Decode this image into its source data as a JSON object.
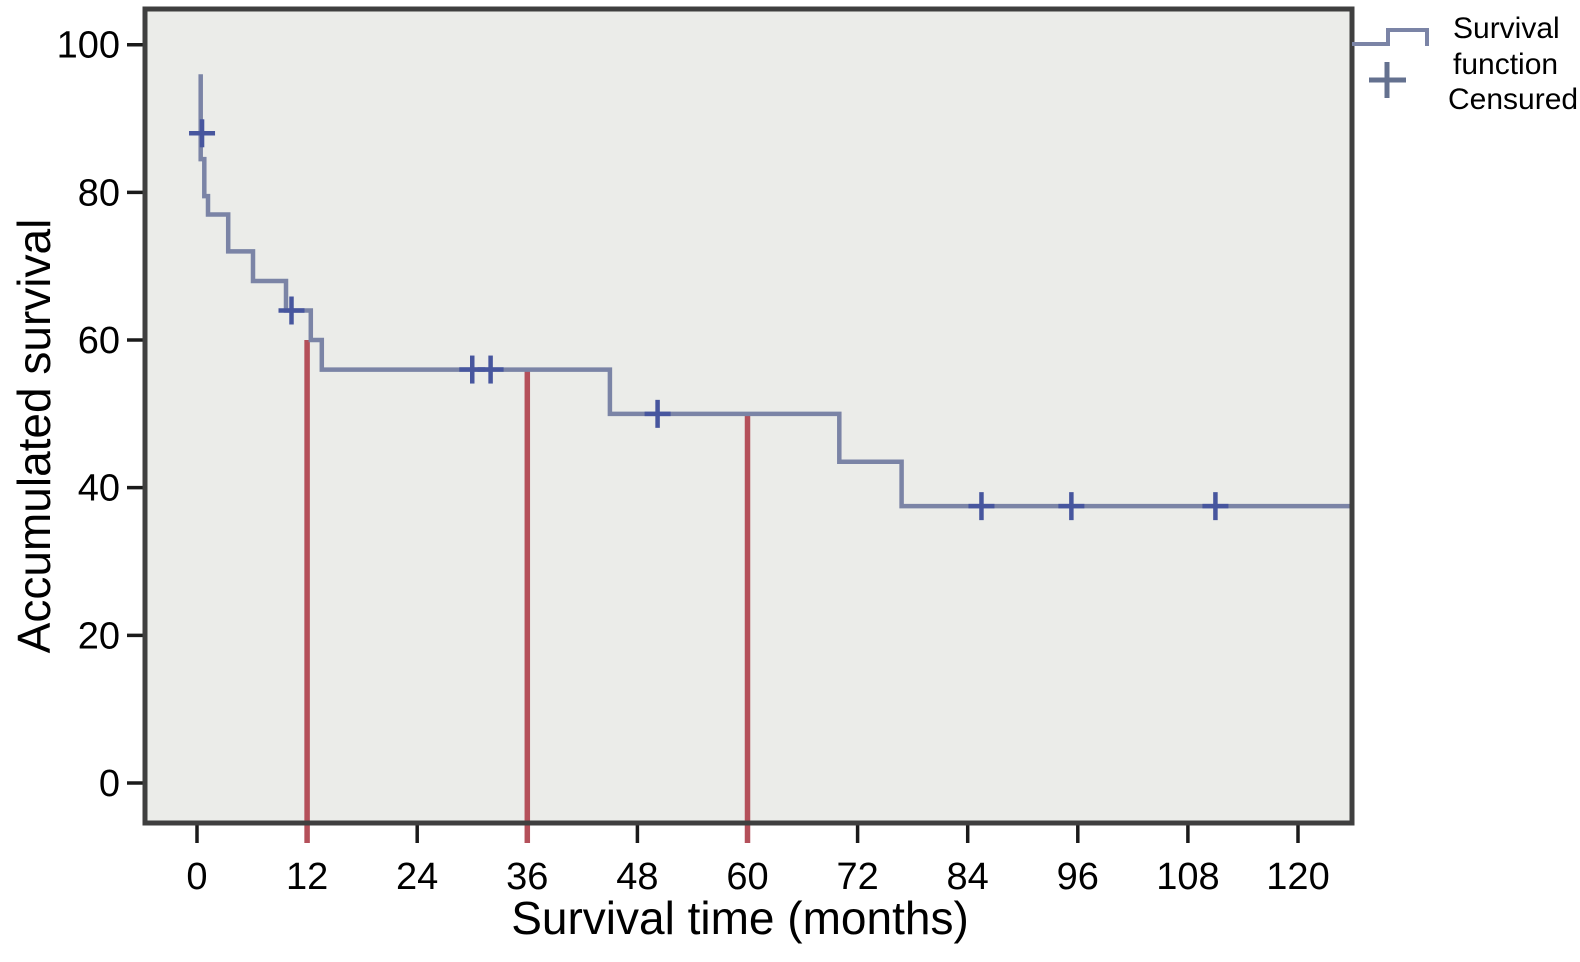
{
  "figure": {
    "kind": "kaplan-meier-survival-plot",
    "background_color": "#ffffff"
  },
  "chart_data": {
    "type": "line",
    "subtype": "kaplan-meier-step",
    "title": "",
    "xlabel": "Survival time (months)",
    "ylabel": "Accumulated survival",
    "x_ticks": [
      0,
      12,
      24,
      36,
      48,
      60,
      72,
      84,
      96,
      108,
      120
    ],
    "y_ticks": [
      0,
      20,
      40,
      60,
      80,
      100
    ],
    "xlim": [
      -5.7,
      125.9
    ],
    "ylim": [
      -5.4,
      104.8
    ],
    "grid": false,
    "legend_position": "top-right-outside",
    "series": [
      {
        "name": "Survival function",
        "type": "step",
        "points": [
          [
            0.4,
            96
          ],
          [
            0.4,
            84.5
          ],
          [
            0.8,
            84.5
          ],
          [
            0.8,
            79.5
          ],
          [
            1.2,
            79.5
          ],
          [
            1.2,
            77
          ],
          [
            3.4,
            77
          ],
          [
            3.4,
            72
          ],
          [
            6.1,
            72
          ],
          [
            6.1,
            68
          ],
          [
            9.7,
            68
          ],
          [
            9.7,
            64
          ],
          [
            12.4,
            64
          ],
          [
            12.4,
            60
          ],
          [
            13.6,
            60
          ],
          [
            13.6,
            56
          ],
          [
            45.0,
            56
          ],
          [
            45.0,
            50
          ],
          [
            70.0,
            50
          ],
          [
            70.0,
            43.5
          ],
          [
            76.8,
            43.5
          ],
          [
            76.8,
            37.5
          ],
          [
            125.9,
            37.5
          ]
        ]
      }
    ],
    "censored_points": [
      [
        0.55,
        88
      ],
      [
        10.3,
        64
      ],
      [
        30,
        56
      ],
      [
        32,
        56
      ],
      [
        50.2,
        50
      ],
      [
        85.5,
        37.5
      ],
      [
        95.3,
        37.5
      ],
      [
        111,
        37.5
      ]
    ],
    "reference_lines": [
      {
        "x": 12,
        "y_top": 60
      },
      {
        "x": 36,
        "y_top": 56
      },
      {
        "x": 60,
        "y_top": 50
      }
    ],
    "colors": {
      "curve": "#7b84a6",
      "censored": "#47569e",
      "reference": "#b4505a",
      "plot_background": "#ebece9",
      "border": "#3f3f3f",
      "tick": "#1a1a1a",
      "text": "#000000"
    }
  },
  "legend": {
    "items": [
      {
        "label": "Survival function",
        "label_lines": [
          "Survival",
          "function"
        ],
        "symbol": "step-line"
      },
      {
        "label": "Censured",
        "label_lines": [
          "Censured"
        ],
        "symbol": "plus"
      }
    ]
  }
}
